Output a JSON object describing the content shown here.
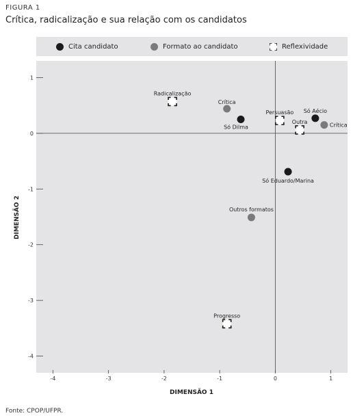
{
  "header": {
    "figure_label": "FIGURA 1",
    "title": "Crítica, radicalização e sua relação com os candidatos"
  },
  "legend": [
    {
      "label": "Cita candidato",
      "marker": "filled-circle",
      "color": "#1a1a1a"
    },
    {
      "label": "Formato ao candidato",
      "marker": "filled-circle",
      "color": "#7a7a7a"
    },
    {
      "label": "Reflexividade",
      "marker": "bracket-square",
      "color": "#1a1a1a"
    }
  ],
  "footer": {
    "source": "Fonte: CPOP/UFPR."
  },
  "chart_data": {
    "type": "scatter",
    "xlabel": "DIMENSÃO 1",
    "ylabel": "DIMENSÃO 2",
    "xlim": [
      -4.3,
      1.3
    ],
    "ylim": [
      -4.3,
      1.3
    ],
    "xticks": [
      -4,
      -3,
      -2,
      -1,
      0,
      1
    ],
    "yticks": [
      1,
      0,
      -1,
      -2,
      -3,
      -4
    ],
    "reference_lines": {
      "x": 0,
      "y": 0
    },
    "background": "#e4e4e6",
    "series": [
      {
        "name": "Cita candidato",
        "marker": "filled-circle",
        "color": "#1a1a1a",
        "points": [
          {
            "label": "Só Dilma",
            "x": -0.62,
            "y": 0.25
          },
          {
            "label": "Só Aécio",
            "x": 0.72,
            "y": 0.27
          },
          {
            "label": "Só Eduardo/Marina",
            "x": 0.23,
            "y": -0.69
          }
        ]
      },
      {
        "name": "Formato ao candidato",
        "marker": "filled-circle",
        "color": "#7a7a7a",
        "points": [
          {
            "label": "Crítica",
            "x": -0.87,
            "y": 0.44
          },
          {
            "label": "Crítica",
            "x": 0.88,
            "y": 0.15
          },
          {
            "label": "Outros formatos",
            "x": -0.43,
            "y": -1.51
          }
        ]
      },
      {
        "name": "Reflexividade",
        "marker": "bracket-square",
        "color": "#1a1a1a",
        "points": [
          {
            "label": "Radicalização",
            "x": -1.85,
            "y": 0.57
          },
          {
            "label": "Persuasão",
            "x": 0.08,
            "y": 0.23
          },
          {
            "label": "Outra",
            "x": 0.44,
            "y": 0.06
          },
          {
            "label": "Progresso",
            "x": -0.87,
            "y": -3.42
          }
        ]
      }
    ]
  }
}
